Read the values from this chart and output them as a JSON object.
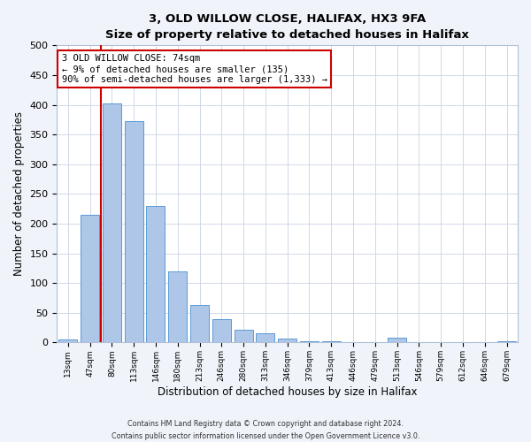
{
  "title_line1": "3, OLD WILLOW CLOSE, HALIFAX, HX3 9FA",
  "title_line2": "Size of property relative to detached houses in Halifax",
  "xlabel": "Distribution of detached houses by size in Halifax",
  "ylabel": "Number of detached properties",
  "bar_labels": [
    "13sqm",
    "47sqm",
    "80sqm",
    "113sqm",
    "146sqm",
    "180sqm",
    "213sqm",
    "246sqm",
    "280sqm",
    "313sqm",
    "346sqm",
    "379sqm",
    "413sqm",
    "446sqm",
    "479sqm",
    "513sqm",
    "546sqm",
    "579sqm",
    "612sqm",
    "646sqm",
    "679sqm"
  ],
  "bar_values": [
    5,
    215,
    403,
    372,
    230,
    120,
    63,
    40,
    22,
    15,
    7,
    2,
    2,
    0,
    0,
    8,
    0,
    0,
    0,
    0,
    2
  ],
  "bar_color": "#aec6e8",
  "bar_edge_color": "#5b9bd5",
  "vline_color": "#cc0000",
  "ylim": [
    0,
    500
  ],
  "yticks": [
    0,
    50,
    100,
    150,
    200,
    250,
    300,
    350,
    400,
    450,
    500
  ],
  "annotation_title": "3 OLD WILLOW CLOSE: 74sqm",
  "annotation_line1": "← 9% of detached houses are smaller (135)",
  "annotation_line2": "90% of semi-detached houses are larger (1,333) →",
  "annotation_box_color": "#ffffff",
  "annotation_box_edge": "#cc0000",
  "footer_line1": "Contains HM Land Registry data © Crown copyright and database right 2024.",
  "footer_line2": "Contains public sector information licensed under the Open Government Licence v3.0.",
  "bg_color": "#f0f4fa",
  "plot_bg_color": "#ffffff",
  "grid_color": "#d0d8e8"
}
